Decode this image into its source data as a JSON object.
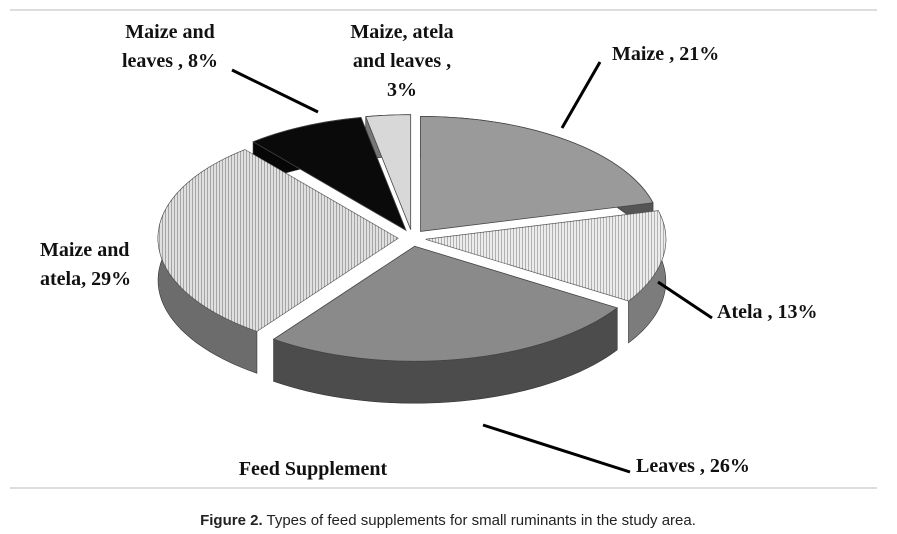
{
  "chart_data": {
    "type": "pie",
    "title": "Feed Supplement",
    "values": [
      21,
      13,
      26,
      29,
      8,
      3
    ],
    "value_labels": [
      [
        "Maize , 21%"
      ],
      [
        "Atela , 13%"
      ],
      [
        "Leaves , 26%"
      ],
      [
        "Maize and",
        "atela, 29%"
      ],
      [
        "Maize and",
        "leaves , 8%"
      ],
      [
        "Maize, atela",
        "and leaves ,",
        "3%"
      ]
    ],
    "colors": [
      "#9a9a9a",
      "#e2e2e2",
      "#8a8a8a",
      "#c4c4c4",
      "#0a0a0a",
      "#d8d8d8"
    ]
  },
  "caption": {
    "label": "Figure 2.",
    "text": " Types of feed supplements for small ruminants in the study area."
  }
}
